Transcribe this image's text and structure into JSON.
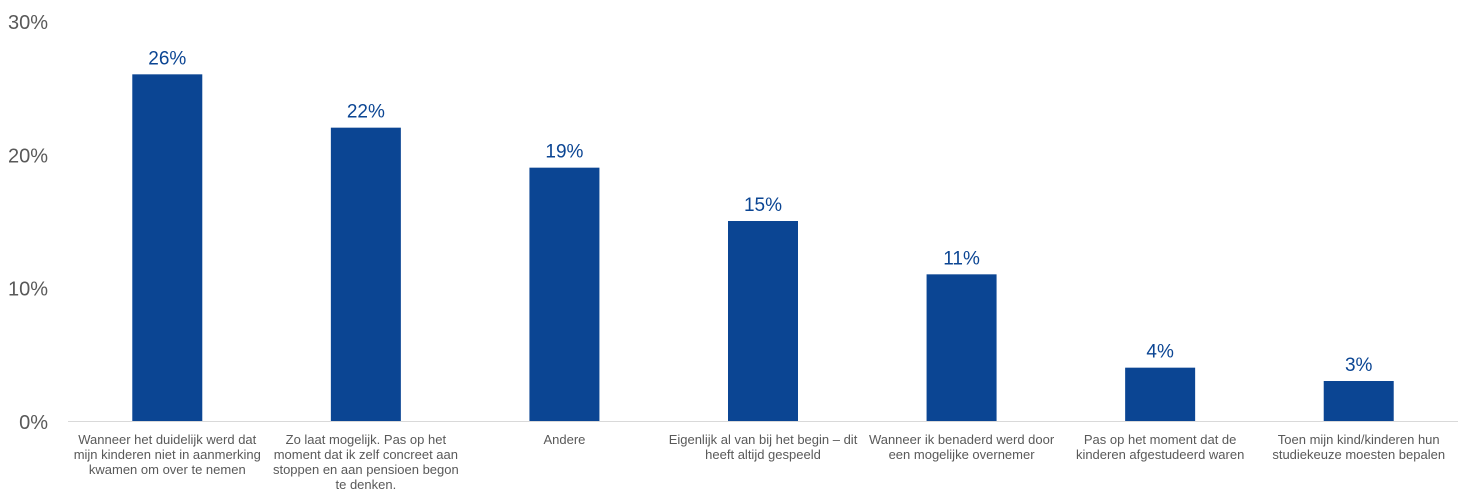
{
  "chart_data": {
    "type": "bar",
    "title": "",
    "xlabel": "",
    "ylabel": "",
    "ylim": [
      0,
      30
    ],
    "y_ticks": [
      "0%",
      "10%",
      "20%",
      "30%"
    ],
    "y_tick_values": [
      0,
      10,
      20,
      30
    ],
    "categories": [
      "Wanneer het duidelijk werd dat mijn kinderen niet in aanmerking kwamen om over te nemen",
      "Zo laat mogelijk. Pas op het moment dat ik zelf concreet aan stoppen en aan pensioen begon te denken.",
      "Andere",
      "Eigenlijk al van bij het begin – dit heeft altijd gespeeld",
      "Wanneer ik benaderd werd door een mogelijke overnemer",
      "Pas op het moment dat de kinderen afgestudeerd waren",
      "Toen mijn kind/kinderen hun studiekeuze moesten bepalen"
    ],
    "category_lines": [
      [
        "Wanneer het duidelijk werd dat",
        "mijn kinderen niet in aanmerking",
        "kwamen om over te nemen"
      ],
      [
        "Zo laat mogelijk. Pas op het",
        "moment dat ik zelf concreet aan",
        "stoppen en aan pensioen begon",
        "te denken."
      ],
      [
        "Andere"
      ],
      [
        "Eigenlijk al van bij het begin – dit",
        "heeft altijd gespeeld"
      ],
      [
        "Wanneer ik benaderd werd door",
        "een mogelijke overnemer"
      ],
      [
        "Pas op het moment dat de",
        "kinderen afgestudeerd waren"
      ],
      [
        "Toen mijn kind/kinderen hun",
        "studiekeuze moesten bepalen"
      ]
    ],
    "values": [
      26,
      22,
      19,
      15,
      11,
      4,
      3
    ],
    "data_labels": [
      "26%",
      "22%",
      "19%",
      "15%",
      "11%",
      "4%",
      "3%"
    ],
    "bar_color": "#0B4593",
    "label_color": "#0B4593",
    "axis_text_color": "#595959",
    "grid": false,
    "legend": "none"
  }
}
